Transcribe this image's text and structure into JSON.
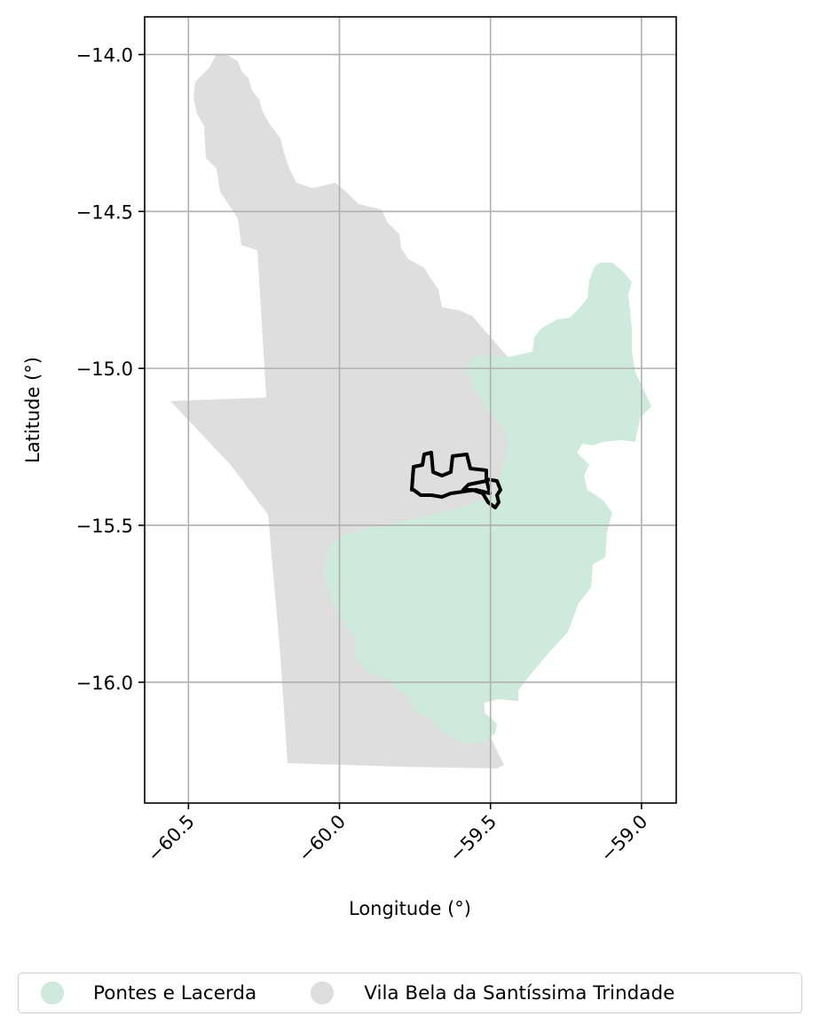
{
  "chart_data": {
    "type": "map",
    "xlabel": "Longitude (°)",
    "ylabel": "Latitude (°)",
    "xlim": [
      -60.645,
      -58.885
    ],
    "ylim": [
      -16.385,
      -13.88
    ],
    "xticks": [
      -60.5,
      -60.0,
      -59.5,
      -59.0
    ],
    "yticks": [
      -14.0,
      -14.5,
      -15.0,
      -15.5,
      -16.0
    ],
    "xtick_labels": [
      "−60.5",
      "−60.0",
      "−59.5",
      "−59.0"
    ],
    "ytick_labels": [
      "−14.0",
      "−14.5",
      "−15.0",
      "−15.5",
      "−16.0"
    ],
    "grid": true,
    "legend_position": "bottom-center",
    "regions": [
      {
        "name": "Vila Bela da Santíssima Trindade",
        "color": "#dedede"
      },
      {
        "name": "Pontes e Lacerda",
        "color": "#ceeadd"
      }
    ],
    "highlight_outline_color": "#000000"
  }
}
